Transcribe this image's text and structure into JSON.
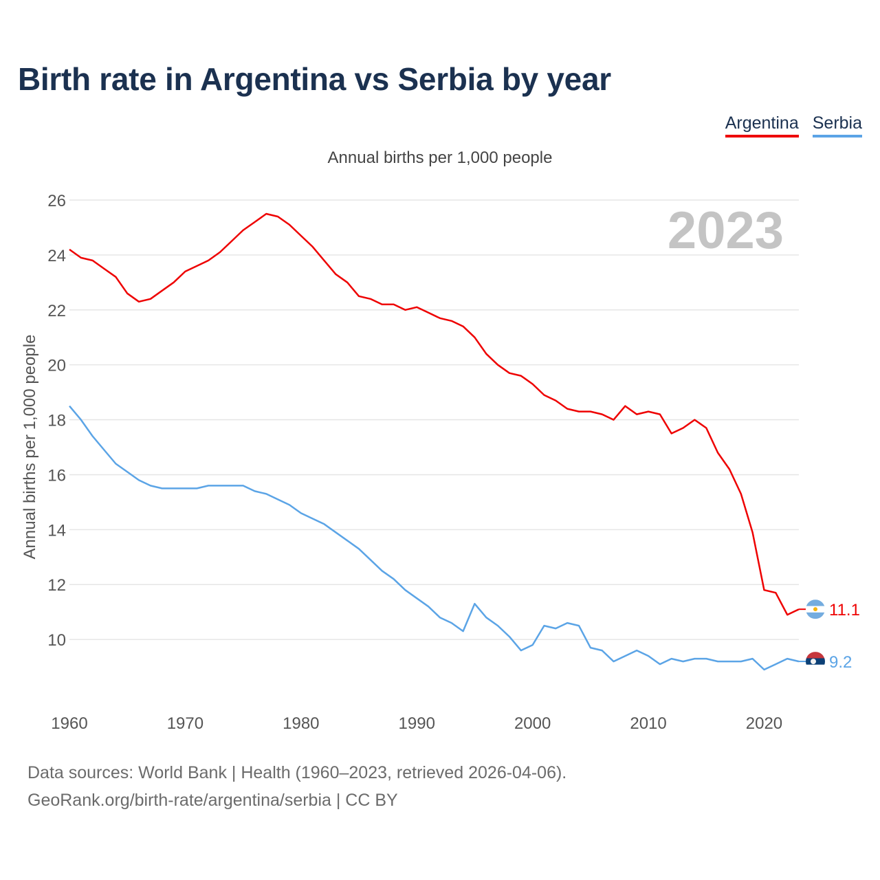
{
  "header": {
    "title": "Birth rate in Argentina vs Serbia by year",
    "subtitle": "Annual births per 1,000 people"
  },
  "legend": [
    {
      "name": "Argentina",
      "color": "#ee0000"
    },
    {
      "name": "Serbia",
      "color": "#5ba4e6"
    }
  ],
  "chart_data": {
    "type": "line",
    "title": "Birth rate in Argentina vs Serbia by year",
    "subtitle": "Annual births per 1,000 people",
    "ylabel": "Annual births per 1,000 people",
    "xlabel": "",
    "ylim": [
      8,
      26
    ],
    "xlim": [
      1960,
      2023
    ],
    "yticks": [
      10,
      12,
      14,
      16,
      18,
      20,
      22,
      24,
      26
    ],
    "xticks": [
      1960,
      1970,
      1980,
      1990,
      2000,
      2010,
      2020
    ],
    "grid": true,
    "year_label": "2023",
    "x": [
      1960,
      1961,
      1962,
      1963,
      1964,
      1965,
      1966,
      1967,
      1968,
      1969,
      1970,
      1971,
      1972,
      1973,
      1974,
      1975,
      1976,
      1977,
      1978,
      1979,
      1980,
      1981,
      1982,
      1983,
      1984,
      1985,
      1986,
      1987,
      1988,
      1989,
      1990,
      1991,
      1992,
      1993,
      1994,
      1995,
      1996,
      1997,
      1998,
      1999,
      2000,
      2001,
      2002,
      2003,
      2004,
      2005,
      2006,
      2007,
      2008,
      2009,
      2010,
      2011,
      2012,
      2013,
      2014,
      2015,
      2016,
      2017,
      2018,
      2019,
      2020,
      2021,
      2022,
      2023
    ],
    "series": [
      {
        "name": "Argentina",
        "color": "#ee0000",
        "end_label": "11.1",
        "flag": "argentina-flag",
        "values": [
          24.2,
          23.9,
          23.8,
          23.5,
          23.2,
          22.6,
          22.3,
          22.4,
          22.7,
          23.0,
          23.4,
          23.6,
          23.8,
          24.1,
          24.5,
          24.9,
          25.2,
          25.5,
          25.4,
          25.1,
          24.7,
          24.3,
          23.8,
          23.3,
          23.0,
          22.5,
          22.4,
          22.2,
          22.2,
          22.0,
          22.1,
          21.9,
          21.7,
          21.6,
          21.4,
          21.0,
          20.4,
          20.0,
          19.7,
          19.6,
          19.3,
          18.9,
          18.7,
          18.4,
          18.3,
          18.3,
          18.2,
          18.0,
          18.5,
          18.2,
          18.3,
          18.2,
          17.5,
          17.7,
          18.0,
          17.7,
          16.8,
          16.2,
          15.3,
          13.9,
          11.8,
          11.7,
          10.9,
          11.1
        ]
      },
      {
        "name": "Serbia",
        "color": "#5ba4e6",
        "end_label": "9.2",
        "flag": "serbia-flag",
        "values": [
          18.5,
          18.0,
          17.4,
          16.9,
          16.4,
          16.1,
          15.8,
          15.6,
          15.5,
          15.5,
          15.5,
          15.5,
          15.6,
          15.6,
          15.6,
          15.6,
          15.4,
          15.3,
          15.1,
          14.9,
          14.6,
          14.4,
          14.2,
          13.9,
          13.6,
          13.3,
          12.9,
          12.5,
          12.2,
          11.8,
          11.5,
          11.2,
          10.8,
          10.6,
          10.3,
          11.3,
          10.8,
          10.5,
          10.1,
          9.6,
          9.8,
          10.5,
          10.4,
          10.6,
          10.5,
          9.7,
          9.6,
          9.2,
          9.4,
          9.6,
          9.4,
          9.1,
          9.3,
          9.2,
          9.3,
          9.3,
          9.2,
          9.2,
          9.2,
          9.3,
          8.9,
          9.1,
          9.3,
          9.2
        ]
      }
    ]
  },
  "footer": {
    "line1": "Data sources: World Bank | Health (1960–2023, retrieved 2026-04-06).",
    "line2": "GeoRank.org/birth-rate/argentina/serbia | CC BY"
  }
}
